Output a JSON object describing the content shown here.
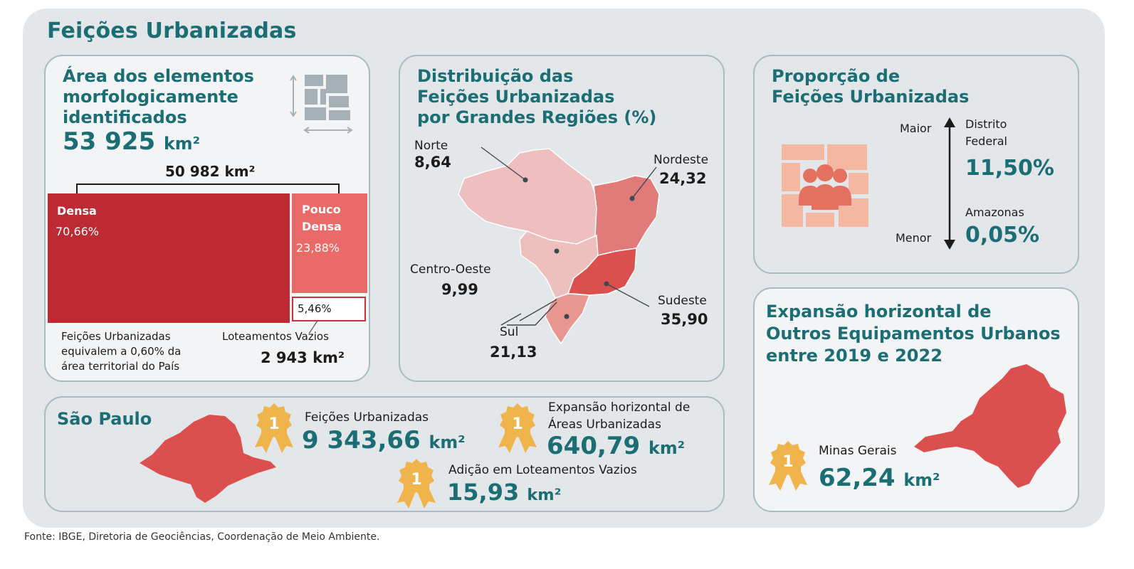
{
  "title": "Feições Urbanizadas",
  "area_card": {
    "heading": [
      "Área dos elementos",
      "morfologicamente",
      "identificados"
    ],
    "total_value": "53 925",
    "total_unit": "km²",
    "bracket_value": "50 982 km²",
    "densa_label": "Densa",
    "densa_pct": "70,66%",
    "densa_share": 0.7066,
    "pouco_label": [
      "Pouco",
      "Densa"
    ],
    "pouco_pct": "23,88%",
    "pouco_share": 0.2388,
    "vazios_pct": "5,46%",
    "vazios_share": 0.0546,
    "note": [
      "Feições Urbanizadas",
      "equivalem a 0,60% da",
      "área territorial do País"
    ],
    "vazios_label": "Loteamentos Vazios",
    "vazios_value": "2 943 km²",
    "icon": "land-parcel-icon"
  },
  "regions_card": {
    "heading": [
      "Distribuição das",
      "Feições Urbanizadas",
      "por Grandes Regiões (%)"
    ],
    "regions": [
      {
        "name": "Norte",
        "value": "8,64"
      },
      {
        "name": "Nordeste",
        "value": "24,32"
      },
      {
        "name": "Centro-Oeste",
        "value": "9,99"
      },
      {
        "name": "Sudeste",
        "value": "35,90"
      },
      {
        "name": "Sul",
        "value": "21,13"
      }
    ],
    "colors": {
      "norte": "#efbebe",
      "nordeste": "#e07b7a",
      "centro_oeste": "#eec0bd",
      "sudeste": "#dc4f4f",
      "sul": "#e99590"
    }
  },
  "proporcao_card": {
    "heading": [
      "Proporção de",
      "Feições Urbanizadas"
    ],
    "maior_label": "Maior",
    "menor_label": "Menor",
    "top_name": [
      "Distrito",
      "Federal"
    ],
    "top_value": "11,50%",
    "bottom_name": "Amazonas",
    "bottom_value": "0,05%",
    "icon": "people-on-parcels-icon"
  },
  "expansao_card": {
    "heading": [
      "Expansão horizontal de",
      "Outros Equipamentos Urbanos",
      "entre 2019 e 2022"
    ],
    "state": "Minas Gerais",
    "value": "62,24",
    "unit": "km²",
    "medal": "1"
  },
  "sp_card": {
    "heading": "São Paulo",
    "items": [
      {
        "label": "Feições Urbanizadas",
        "value": "9 343,66",
        "unit": "km²",
        "medal": "1"
      },
      {
        "label": [
          "Expansão horizontal de",
          "Áreas Urbanizadas"
        ],
        "value": "640,79",
        "unit": "km²",
        "medal": "1"
      },
      {
        "label": "Adição em Loteamentos Vazios",
        "value": "15,93",
        "unit": "km²",
        "medal": "1"
      }
    ]
  },
  "source": "Fonte: IBGE, Diretoria de Geociências, Coordenação de Meio Ambiente.",
  "colors": {
    "teal": "#1c6e75",
    "dark_red": "#be2a33",
    "salmon": "#ea6a67",
    "panel": "#e4e7e9",
    "border": "#a7bcc2",
    "medal": "#f0b44c"
  }
}
